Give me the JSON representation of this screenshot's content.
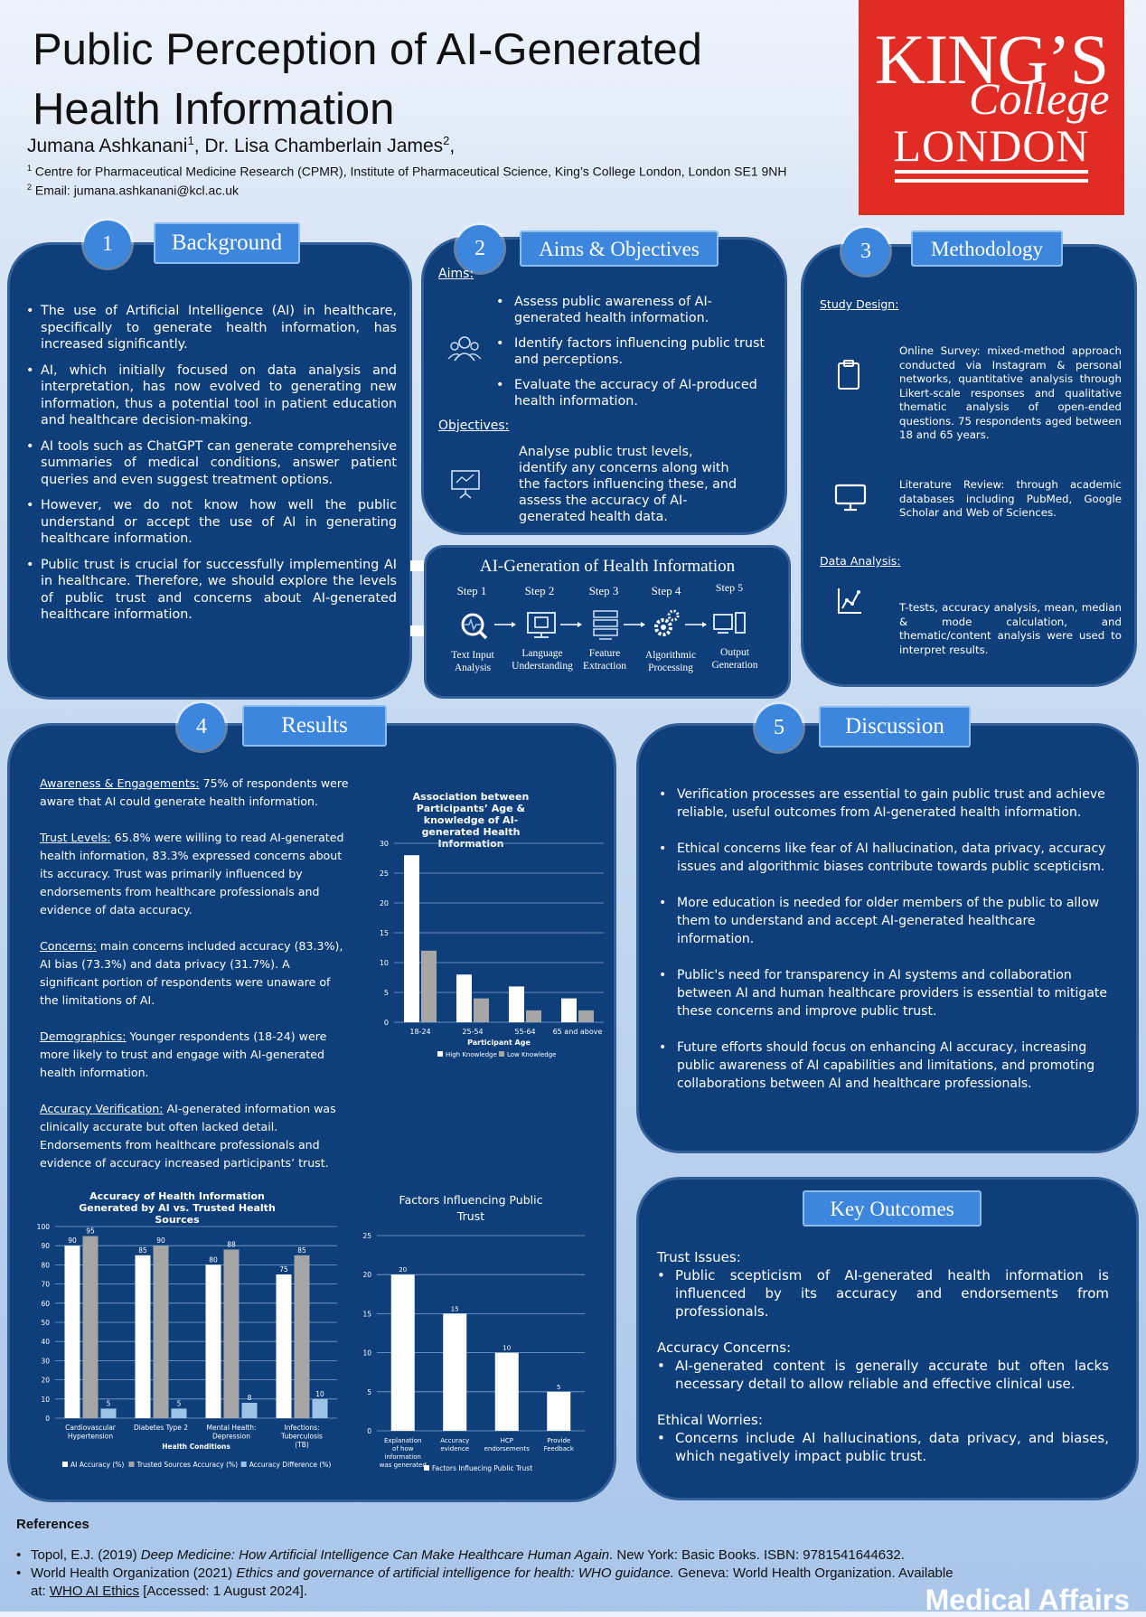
{
  "header": {
    "title_line1": "Public Perception of AI-Generated",
    "title_line2": "Health Information",
    "author1": "Jumana Ashkanani",
    "author1_sup": "1",
    "author_sep": ", Dr. Lisa Chamberlain James",
    "author2_sup": "2",
    "author_end": ",",
    "affil1_sup": "1",
    "affil1": "Centre for Pharmaceutical Medicine Research (CPMR), Institute of Pharmaceutical Science, King’s College London, London SE1 9NH",
    "affil2_sup": "2",
    "affil2": "Email: jumana.ashkanani@kcl.ac.uk"
  },
  "logo": {
    "line1": "KING’S",
    "line2": "College",
    "line3": "LONDON"
  },
  "background": {
    "num": "1",
    "title": "Background",
    "bullets": [
      "The use of Artificial Intelligence (AI) in healthcare, specifically to generate health information, has increased significantly.",
      "AI, which initially focused on data analysis and interpretation, has now evolved to generating new information, thus a potential tool in patient education and healthcare decision-making.",
      "AI tools such as ChatGPT can generate comprehensive summaries of medical conditions, answer patient queries and even suggest treatment options.",
      "However, we do not know how well the public understand or accept the use of AI in generating healthcare information.",
      "Public trust is crucial for successfully implementing AI in healthcare. Therefore, we should explore the levels of public trust and concerns about AI-generated healthcare information."
    ]
  },
  "aims": {
    "num": "2",
    "title": "Aims & Objectives",
    "aims_label": "Aims:",
    "aims": [
      "Assess public awareness of AI-generated health information.",
      "Identify factors influencing public trust and perceptions.",
      "Evaluate the accuracy of AI-produced health information."
    ],
    "objectives_label": "Objectives:",
    "objectives_text": "Analyse public trust levels, identify any concerns along with the factors influencing these, and assess the accuracy of AI-generated health data."
  },
  "methodology": {
    "num": "3",
    "title": "Methodology",
    "study_design_label": "Study Design:",
    "survey_text": "Online Survey: mixed-method approach conducted via Instagram & personal networks, quantitative analysis through Likert-scale responses and qualitative thematic analysis of open-ended questions. 75 respondents aged between 18 and 65 years.",
    "literature_text": "Literature Review: through academic databases including PubMed, Google Scholar and Web of Sciences.",
    "data_analysis_label": "Data Analysis:",
    "analysis_text": "T-tests, accuracy analysis, mean, median & mode calculation, and thematic/content analysis were used to interpret results."
  },
  "pipeline": {
    "title": "AI-Generation of Health Information",
    "steps": [
      {
        "step": "Step 1",
        "label1": "Text Input",
        "label2": "Analysis"
      },
      {
        "step": "Step 2",
        "label1": "Language",
        "label2": "Understanding"
      },
      {
        "step": "Step 3",
        "label1": "Feature",
        "label2": "Extraction"
      },
      {
        "step": "Step 4",
        "label1": "Algorithmic",
        "label2": "Processing"
      },
      {
        "step": "Step 5",
        "label1": "Output",
        "label2": "Generation"
      }
    ]
  },
  "results": {
    "num": "4",
    "title": "Results",
    "awareness_label": "Awareness & Engagements:",
    "awareness_text": " 75% of respondents were aware that AI could generate health information.",
    "trust_label": "Trust Levels:",
    "trust_text": " 65.8% were willing to read AI-generated health information, 83.3% expressed concerns about its accuracy. Trust was primarily influenced by endorsements from healthcare professionals and evidence of data accuracy.",
    "concerns_label": "Concerns:",
    "concerns_text": " main concerns included accuracy (83.3%), AI bias (73.3%) and data privacy (31.7%). A significant portion of respondents were unaware of the limitations of AI.",
    "demographics_label": "Demographics:",
    "demographics_text": " Younger respondents (18-24) were more likely to trust and engage with AI-generated health information.",
    "accuracy_label": "Accuracy Verification:",
    "accuracy_text": " AI-generated information was clinically accurate but often lacked detail. Endorsements from healthcare professionals and evidence of accuracy increased participants’ trust."
  },
  "discussion": {
    "num": "5",
    "title": "Discussion",
    "bullets": [
      "Verification processes are essential to gain public trust and achieve reliable, useful outcomes from AI-generated health information.",
      "Ethical concerns like fear of AI hallucination, data privacy, accuracy issues and algorithmic biases contribute towards public scepticism.",
      "More education is needed for older members of the public to allow them to understand and accept AI-generated healthcare information.",
      "Public's need for transparency in AI systems and collaboration between AI and human healthcare providers is essential to mitigate these concerns and improve public trust.",
      "Future efforts should focus on enhancing AI accuracy, increasing public awareness of AI capabilities and limitations, and promoting collaborations between AI and healthcare professionals."
    ]
  },
  "key_outcomes": {
    "title": "Key Outcomes",
    "sections": [
      {
        "heading": "Trust Issues:",
        "text": "Public scepticism of AI-generated health information is influenced by its accuracy and endorsements from professionals."
      },
      {
        "heading": "Accuracy Concerns:",
        "text": "AI-generated content is generally accurate but often lacks necessary detail to allow reliable and effective clinical use."
      },
      {
        "heading": "Ethical Worries:",
        "text": "Concerns include AI hallucinations, data privacy, and biases, which negatively impact public trust."
      }
    ]
  },
  "references": {
    "heading": "References",
    "ref1_pre": "Topol, E.J. (2019) ",
    "ref1_italic": "Deep Medicine: How Artificial Intelligence Can Make Healthcare Human Again",
    "ref1_post": ". New York: Basic Books. ISBN: 9781541644632.",
    "ref2_pre": "World Health Organization (2021) ",
    "ref2_italic": "Ethics and governance of artificial intelligence for health: WHO guidance.",
    "ref2_post": " Geneva: World Health Organization. Available",
    "ref2_line2_pre": "at: ",
    "ref2_link": "WHO AI Ethics",
    "ref2_line2_post": " [Accessed: 1 August 2024]."
  },
  "footer_brand": "Medical Affairs",
  "colors": {
    "panel": "#0f3f7a",
    "accent": "#3d86dd",
    "logo_red": "#e12c26",
    "gray_bar": "#a6a6a6",
    "light_blue_bar": "#9dc3e6"
  },
  "chart_data": [
    {
      "type": "bar",
      "title": "Association between Participants’ Age & knowledge of AI-generated Health Information",
      "categories": [
        "18-24",
        "25-54",
        "55-64",
        "65 and above"
      ],
      "series": [
        {
          "name": "High Knowledge",
          "values": [
            28,
            8,
            6,
            4
          ]
        },
        {
          "name": "Low Knowledge",
          "values": [
            12,
            4,
            2,
            2
          ]
        }
      ],
      "xlabel": "Participant Age",
      "ylabel": "",
      "ylim": [
        0,
        30
      ],
      "yticks": [
        0,
        5,
        10,
        15,
        20,
        25,
        30
      ],
      "grid": true,
      "legend": "bottom"
    },
    {
      "type": "bar",
      "title": "Accuracy of Health Information Generated by AI vs. Trusted Health Sources",
      "categories": [
        "Cardiovascular Hypertension",
        "Diabetes Type 2",
        "Mental Health: Depression",
        "Infections: Tuberculosis (TB)"
      ],
      "series": [
        {
          "name": "AI Accuracy (%)",
          "values": [
            90,
            85,
            80,
            75
          ]
        },
        {
          "name": "Trusted Sources Accuracy (%)",
          "values": [
            95,
            90,
            88,
            85
          ]
        },
        {
          "name": "Accuracy Difference (%)",
          "values": [
            5,
            5,
            8,
            10
          ]
        }
      ],
      "xlabel": "Health Conditions",
      "ylabel": "",
      "ylim": [
        0,
        100
      ],
      "yticks": [
        0,
        10,
        20,
        30,
        40,
        50,
        60,
        70,
        80,
        90,
        100
      ],
      "grid": true,
      "legend": "bottom"
    },
    {
      "type": "bar",
      "title": "Factors Influencing Public Trust",
      "categories": [
        "Explanation of how information was generated",
        "Accuracy evidence",
        "HCP endorsements",
        "Provide Feedback"
      ],
      "series": [
        {
          "name": "Factors Influecing Public Trust",
          "values": [
            20,
            15,
            10,
            5
          ]
        }
      ],
      "xlabel": "",
      "ylabel": "",
      "ylim": [
        0,
        25
      ],
      "yticks": [
        0,
        5,
        10,
        15,
        20,
        25
      ],
      "grid": true,
      "legend": "bottom"
    }
  ]
}
